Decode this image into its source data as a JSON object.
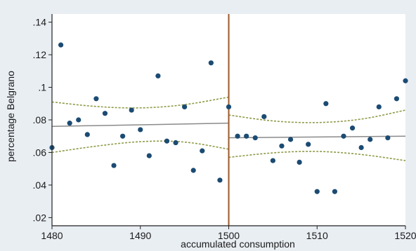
{
  "chart_data": {
    "type": "scatter",
    "title": "",
    "xlabel": "accumulated consumption",
    "ylabel": "percentage Belgrano",
    "xlim": [
      1480,
      1520
    ],
    "ylim": [
      0.015,
      0.145
    ],
    "x_ticks": [
      1480,
      1490,
      1500,
      1510,
      1520
    ],
    "x_tick_labels": [
      "1480",
      "1490",
      "1500",
      "1510",
      "1520"
    ],
    "y_ticks": [
      0.02,
      0.04,
      0.06,
      0.08,
      0.1,
      0.12,
      0.14
    ],
    "y_tick_labels": [
      ".02",
      ".04",
      ".06",
      ".08",
      ".1",
      ".12",
      ".14"
    ],
    "grid": false,
    "legend": "none",
    "cutoff_x": 1500,
    "series": [
      {
        "points": [
          [
            1480,
            0.063
          ],
          [
            1481,
            0.126
          ],
          [
            1482,
            0.078
          ],
          [
            1483,
            0.08
          ],
          [
            1484,
            0.071
          ],
          [
            1485,
            0.093
          ],
          [
            1486,
            0.084
          ],
          [
            1487,
            0.052
          ],
          [
            1488,
            0.07
          ],
          [
            1489,
            0.086
          ],
          [
            1490,
            0.074
          ],
          [
            1491,
            0.058
          ],
          [
            1492,
            0.107
          ],
          [
            1493,
            0.067
          ],
          [
            1494,
            0.066
          ],
          [
            1495,
            0.088
          ],
          [
            1496,
            0.049
          ],
          [
            1497,
            0.061
          ],
          [
            1498,
            0.115
          ],
          [
            1499,
            0.043
          ],
          [
            1500,
            0.088
          ],
          [
            1501,
            0.07
          ],
          [
            1502,
            0.07
          ],
          [
            1503,
            0.069
          ],
          [
            1504,
            0.082
          ],
          [
            1505,
            0.055
          ],
          [
            1506,
            0.064
          ],
          [
            1507,
            0.068
          ],
          [
            1508,
            0.054
          ],
          [
            1509,
            0.065
          ],
          [
            1510,
            0.036
          ],
          [
            1511,
            0.09
          ],
          [
            1512,
            0.036
          ],
          [
            1513,
            0.07
          ],
          [
            1514,
            0.075
          ],
          [
            1515,
            0.063
          ],
          [
            1516,
            0.068
          ],
          [
            1517,
            0.088
          ],
          [
            1518,
            0.069
          ],
          [
            1519,
            0.093
          ],
          [
            1520,
            0.104
          ]
        ]
      }
    ],
    "fit_lines": [
      {
        "x": [
          1480,
          1500
        ],
        "y": [
          0.076,
          0.078
        ]
      },
      {
        "x": [
          1500,
          1520
        ],
        "y": [
          0.069,
          0.07
        ]
      }
    ],
    "confidence_bands": [
      {
        "x": [
          1480,
          1485,
          1490,
          1495,
          1500
        ],
        "upper": [
          0.091,
          0.088,
          0.087,
          0.089,
          0.094
        ],
        "lower": [
          0.06,
          0.064,
          0.067,
          0.067,
          0.062
        ]
      },
      {
        "x": [
          1500,
          1505,
          1510,
          1515,
          1520
        ],
        "upper": [
          0.083,
          0.079,
          0.078,
          0.08,
          0.086
        ],
        "lower": [
          0.057,
          0.06,
          0.061,
          0.059,
          0.055
        ]
      }
    ],
    "colors": {
      "background": "#e9eef3",
      "plot_background": "#ffffff",
      "marker": "#1b4b73",
      "fit_line": "#8a8a8a",
      "confidence_band": "#8f9a48",
      "cutoff_line": "#9b5a2a",
      "axis": "#222222"
    }
  }
}
